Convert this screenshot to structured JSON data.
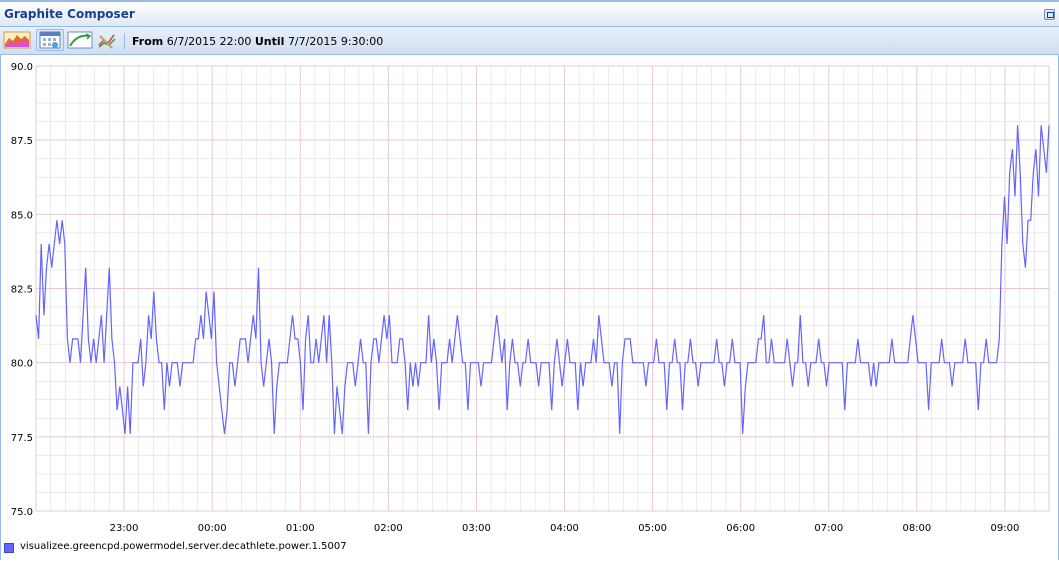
{
  "window": {
    "title": "Graphite Composer"
  },
  "toolbar": {
    "buttons": [
      {
        "name": "graph-data-icon"
      },
      {
        "name": "select-date-range-icon"
      },
      {
        "name": "recent-data-icon"
      },
      {
        "name": "graph-options-icon"
      }
    ],
    "from_label": "From",
    "from_value": "6/7/2015 22:00",
    "until_label": "Until",
    "until_value": "7/7/2015 9:30:00"
  },
  "colors": {
    "series": "#6464ff",
    "grid_major": "#e8c8d8",
    "grid_minor": "#d9d9d9",
    "title": "#15428b"
  },
  "chart_data": {
    "type": "line",
    "ylim": [
      75.0,
      90.0
    ],
    "y_ticks": [
      "90.0",
      "87.5",
      "85.0",
      "82.5",
      "80.0",
      "77.5",
      "75.0"
    ],
    "x_ticks": [
      "23:00",
      "00:00",
      "01:00",
      "02:00",
      "03:00",
      "04:00",
      "05:00",
      "06:00",
      "07:00",
      "08:00",
      "09:00"
    ],
    "x_start": "22:00",
    "x_end": "09:30",
    "grid": true,
    "legend_position": "bottom-left",
    "series": [
      {
        "name": "visualizee.greencpd.powermodel.server.decathlete.power.1.5007",
        "values": [
          81.6,
          80.8,
          84.0,
          81.6,
          83.2,
          84.0,
          83.2,
          84.0,
          84.8,
          84.0,
          84.8,
          84.0,
          80.8,
          80.0,
          80.8,
          80.8,
          80.8,
          80.0,
          81.6,
          83.2,
          80.8,
          80.0,
          80.8,
          80.0,
          80.8,
          81.6,
          80.0,
          81.6,
          83.2,
          80.8,
          80.0,
          78.4,
          79.2,
          78.4,
          77.6,
          79.2,
          77.6,
          80.0,
          80.0,
          80.0,
          80.8,
          79.2,
          80.0,
          81.6,
          80.8,
          82.4,
          80.8,
          80.0,
          80.0,
          78.4,
          80.0,
          79.2,
          80.0,
          80.0,
          80.0,
          79.2,
          80.0,
          80.0,
          80.0,
          80.0,
          80.0,
          80.8,
          80.8,
          81.6,
          80.8,
          82.4,
          81.6,
          80.8,
          82.4,
          80.0,
          79.2,
          78.4,
          77.6,
          78.4,
          80.0,
          80.0,
          79.2,
          80.0,
          80.8,
          80.8,
          80.8,
          80.0,
          80.8,
          81.6,
          80.8,
          83.2,
          80.0,
          79.2,
          80.0,
          80.8,
          80.0,
          77.6,
          79.2,
          80.0,
          80.0,
          80.0,
          80.0,
          80.8,
          81.6,
          80.8,
          80.8,
          80.0,
          78.4,
          80.8,
          81.6,
          80.0,
          80.0,
          80.8,
          80.0,
          80.8,
          81.6,
          80.0,
          81.6,
          80.0,
          77.6,
          79.2,
          78.4,
          77.6,
          79.2,
          80.0,
          80.0,
          80.0,
          79.2,
          80.0,
          80.8,
          80.0,
          80.0,
          77.6,
          80.0,
          80.8,
          80.8,
          80.0,
          80.8,
          81.6,
          80.8,
          81.6,
          80.0,
          80.0,
          80.0,
          80.8,
          80.8,
          80.0,
          78.4,
          80.0,
          79.2,
          80.0,
          79.2,
          80.0,
          80.0,
          80.0,
          81.6,
          80.0,
          80.8,
          80.0,
          78.4,
          80.0,
          80.0,
          80.0,
          80.8,
          80.0,
          80.8,
          81.6,
          80.8,
          80.0,
          80.0,
          78.4,
          80.0,
          80.0,
          80.0,
          80.0,
          79.2,
          80.0,
          80.0,
          80.0,
          80.0,
          80.8,
          81.6,
          80.8,
          80.0,
          80.8,
          78.4,
          80.0,
          80.8,
          80.0,
          80.0,
          79.2,
          80.0,
          80.0,
          80.8,
          80.0,
          80.0,
          80.0,
          79.2,
          80.0,
          80.0,
          80.0,
          80.0,
          78.4,
          80.0,
          80.8,
          80.0,
          79.2,
          80.0,
          80.8,
          80.0,
          80.0,
          80.0,
          78.4,
          80.0,
          79.2,
          80.0,
          80.0,
          80.0,
          80.8,
          80.0,
          81.6,
          80.8,
          80.0,
          80.0,
          80.0,
          79.2,
          80.0,
          80.0,
          77.6,
          80.0,
          80.8,
          80.8,
          80.8,
          80.0,
          80.0,
          80.0,
          80.0,
          80.0,
          79.2,
          80.0,
          80.0,
          80.0,
          80.8,
          80.0,
          80.0,
          80.0,
          78.4,
          80.0,
          80.0,
          80.8,
          80.0,
          80.0,
          78.4,
          80.0,
          80.0,
          80.8,
          80.0,
          80.0,
          79.2,
          80.0,
          80.0,
          80.0,
          80.0,
          80.0,
          80.0,
          80.8,
          80.0,
          80.0,
          79.2,
          80.0,
          80.0,
          80.8,
          80.0,
          80.0,
          80.0,
          77.6,
          79.2,
          80.0,
          80.0,
          80.0,
          80.0,
          80.8,
          80.8,
          81.6,
          80.0,
          80.0,
          80.8,
          80.0,
          80.0,
          80.0,
          80.0,
          80.0,
          80.8,
          80.0,
          79.2,
          80.0,
          80.0,
          81.6,
          80.0,
          80.0,
          79.2,
          80.0,
          80.0,
          80.0,
          80.8,
          80.0,
          80.0,
          79.2,
          80.0,
          80.0,
          80.0,
          80.0,
          80.0,
          80.0,
          78.4,
          80.0,
          80.0,
          80.0,
          80.0,
          80.8,
          80.0,
          80.0,
          80.0,
          80.0,
          79.2,
          80.0,
          79.2,
          80.0,
          80.0,
          80.0,
          80.0,
          80.0,
          80.8,
          80.0,
          80.0,
          80.0,
          80.0,
          80.0,
          80.0,
          80.8,
          81.6,
          80.8,
          80.0,
          80.0,
          80.0,
          80.0,
          78.4,
          80.0,
          80.0,
          80.0,
          80.0,
          80.8,
          80.0,
          80.0,
          80.0,
          79.2,
          80.0,
          80.0,
          80.0,
          80.0,
          80.8,
          80.0,
          80.0,
          80.0,
          80.0,
          78.4,
          80.0,
          80.0,
          80.8,
          80.0,
          80.0,
          80.0,
          80.0,
          80.8,
          84.0,
          85.6,
          84.0,
          86.4,
          87.2,
          85.6,
          88.0,
          86.4,
          84.0,
          83.2,
          84.8,
          84.8,
          86.4,
          87.2,
          85.6,
          88.0,
          87.2,
          86.4,
          88.0
        ]
      }
    ]
  }
}
